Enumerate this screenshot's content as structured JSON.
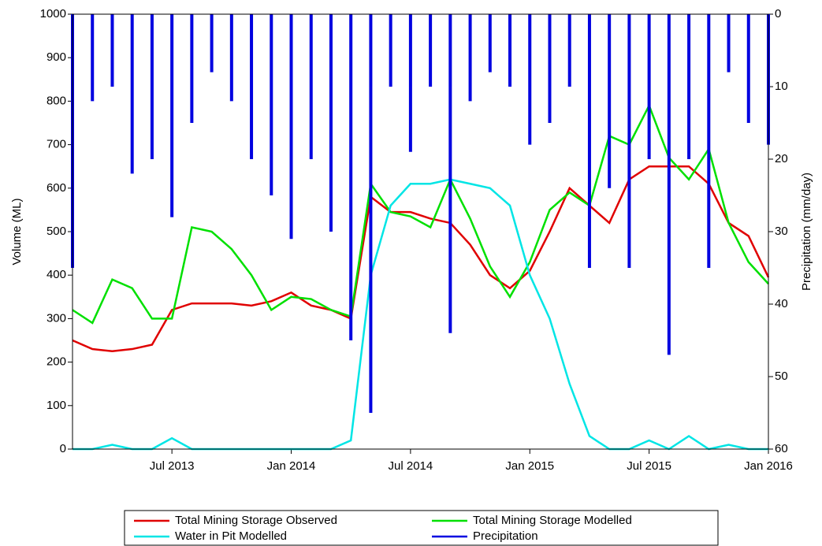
{
  "chart_data": {
    "type": "line",
    "y_label": "Volume (ML)",
    "y2_label": "Precipitation (mm/day)",
    "x": [
      "2013-02",
      "2013-03",
      "2013-04",
      "2013-05",
      "2013-06",
      "2013-07",
      "2013-08",
      "2013-09",
      "2013-10",
      "2013-11",
      "2013-12",
      "2014-01",
      "2014-02",
      "2014-03",
      "2014-04",
      "2014-05",
      "2014-06",
      "2014-07",
      "2014-08",
      "2014-09",
      "2014-10",
      "2014-11",
      "2014-12",
      "2015-01",
      "2015-02",
      "2015-03",
      "2015-04",
      "2015-05",
      "2015-06",
      "2015-07",
      "2015-08",
      "2015-09",
      "2015-10",
      "2015-11",
      "2015-12",
      "2016-01"
    ],
    "xlim": [
      "2013-02",
      "2016-01"
    ],
    "xticks": [
      {
        "value": "2013-07",
        "label": "Jul 2013"
      },
      {
        "value": "2014-01",
        "label": "Jan 2014"
      },
      {
        "value": "2014-07",
        "label": "Jul 2014"
      },
      {
        "value": "2015-01",
        "label": "Jan 2015"
      },
      {
        "value": "2015-07",
        "label": "Jul 2015"
      },
      {
        "value": "2016-01",
        "label": "Jan 2016"
      }
    ],
    "ylim": [
      0,
      1000
    ],
    "yticks": [
      0,
      100,
      200,
      300,
      400,
      500,
      600,
      700,
      800,
      900,
      1000
    ],
    "y2lim": [
      60,
      0
    ],
    "y2ticks": [
      0,
      10,
      20,
      30,
      40,
      50,
      60
    ],
    "series": [
      {
        "name": "Total Mining Storage Observed",
        "color": "#e00000",
        "values": [
          250,
          230,
          225,
          230,
          240,
          320,
          335,
          335,
          335,
          330,
          340,
          360,
          330,
          320,
          300,
          580,
          545,
          545,
          530,
          520,
          470,
          400,
          370,
          410,
          500,
          600,
          560,
          520,
          620,
          650,
          650,
          650,
          610,
          520,
          490,
          395
        ]
      },
      {
        "name": "Total Mining Storage Modelled",
        "color": "#00e000",
        "values": [
          320,
          290,
          390,
          370,
          300,
          300,
          510,
          500,
          460,
          400,
          320,
          350,
          345,
          320,
          305,
          610,
          545,
          535,
          510,
          620,
          530,
          420,
          350,
          430,
          550,
          590,
          560,
          720,
          700,
          790,
          670,
          620,
          690,
          520,
          430,
          380
        ]
      },
      {
        "name": "Water in Pit Modelled",
        "color": "#00e5e5",
        "values": [
          0,
          0,
          10,
          0,
          0,
          25,
          0,
          0,
          0,
          0,
          0,
          0,
          0,
          0,
          20,
          400,
          560,
          610,
          610,
          620,
          610,
          600,
          560,
          400,
          300,
          150,
          30,
          0,
          0,
          20,
          0,
          30,
          0,
          10,
          0,
          0
        ]
      },
      {
        "name": "Precipitation",
        "color": "#0000e0",
        "axis": "y2",
        "values": [
          35,
          12,
          10,
          22,
          20,
          28,
          15,
          8,
          12,
          20,
          25,
          31,
          20,
          30,
          45,
          55,
          10,
          19,
          10,
          44,
          12,
          8,
          10,
          18,
          15,
          10,
          35,
          24,
          35,
          20,
          47,
          20,
          35,
          8,
          15,
          18
        ]
      }
    ]
  }
}
